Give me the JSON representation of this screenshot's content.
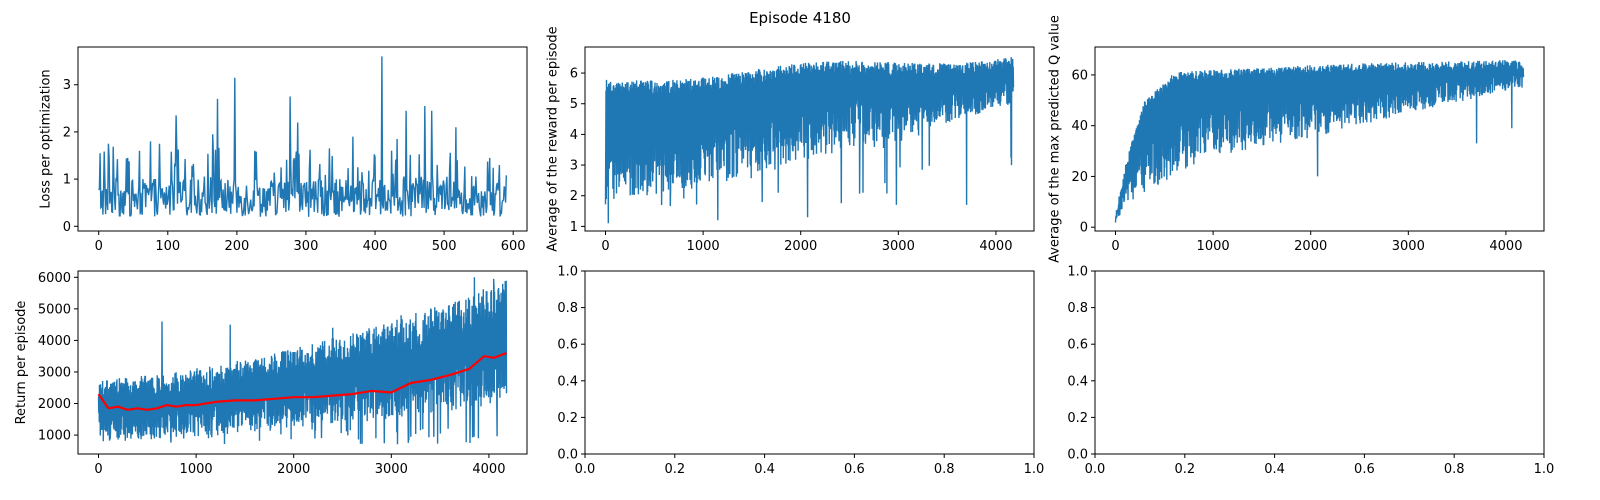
{
  "figure": {
    "suptitle": "Episode 4180"
  },
  "colors": {
    "series_blue": "#1f77b4",
    "running_mean_red": "#ff0000"
  },
  "chart_data": [
    {
      "id": "loss",
      "type": "line",
      "xlabel": "",
      "ylabel": "Loss per optimization",
      "xlim": [
        -30,
        620
      ],
      "ylim": [
        -0.1,
        3.8
      ],
      "xticks": [
        0,
        100,
        200,
        300,
        400,
        500,
        600
      ],
      "yticks": [
        0,
        1,
        2,
        3
      ],
      "grid": false,
      "x_range": [
        0,
        590
      ],
      "baseline_range": [
        0.2,
        1.0
      ],
      "spikes": [
        {
          "x": 2,
          "y": 1.55
        },
        {
          "x": 14,
          "y": 1.75
        },
        {
          "x": 42,
          "y": 1.45
        },
        {
          "x": 75,
          "y": 1.8
        },
        {
          "x": 88,
          "y": 1.75
        },
        {
          "x": 112,
          "y": 2.35
        },
        {
          "x": 165,
          "y": 1.95
        },
        {
          "x": 172,
          "y": 2.7
        },
        {
          "x": 197,
          "y": 3.15
        },
        {
          "x": 226,
          "y": 1.6
        },
        {
          "x": 277,
          "y": 2.75
        },
        {
          "x": 288,
          "y": 2.2
        },
        {
          "x": 334,
          "y": 1.65
        },
        {
          "x": 368,
          "y": 1.9
        },
        {
          "x": 410,
          "y": 3.6
        },
        {
          "x": 432,
          "y": 1.85
        },
        {
          "x": 445,
          "y": 2.45
        },
        {
          "x": 472,
          "y": 2.55
        },
        {
          "x": 482,
          "y": 2.45
        },
        {
          "x": 517,
          "y": 2.1
        },
        {
          "x": 566,
          "y": 1.45
        }
      ]
    },
    {
      "id": "avg-reward",
      "type": "line",
      "xlabel": "",
      "ylabel": "Average of the reward per episode",
      "xlim": [
        -210,
        4390
      ],
      "ylim": [
        0.85,
        6.85
      ],
      "xticks": [
        0,
        1000,
        2000,
        3000,
        4000
      ],
      "yticks": [
        1,
        2,
        3,
        4,
        5,
        6
      ],
      "grid": false,
      "x_range": [
        0,
        4180
      ],
      "band_start": [
        1.8,
        5.8
      ],
      "band_end": [
        5.0,
        6.6
      ],
      "min_dips": [
        {
          "x": 30,
          "y": 1.1
        },
        {
          "x": 1150,
          "y": 1.2
        },
        {
          "x": 2070,
          "y": 1.3
        },
        {
          "x": 2980,
          "y": 1.7
        },
        {
          "x": 3700,
          "y": 1.7
        },
        {
          "x": 4160,
          "y": 3.0
        }
      ]
    },
    {
      "id": "max-q",
      "type": "line",
      "xlabel": "",
      "ylabel": "Average of the max predicted Q value",
      "xlim": [
        -210,
        4390
      ],
      "ylim": [
        -1.5,
        71
      ],
      "xticks": [
        0,
        1000,
        2000,
        3000,
        4000
      ],
      "yticks": [
        0,
        20,
        40,
        60
      ],
      "grid": false,
      "x_range": [
        0,
        4180
      ],
      "upper_envelope": [
        {
          "x": 0,
          "y": 5
        },
        {
          "x": 100,
          "y": 25
        },
        {
          "x": 300,
          "y": 50
        },
        {
          "x": 600,
          "y": 61
        },
        {
          "x": 1000,
          "y": 62
        },
        {
          "x": 2000,
          "y": 64
        },
        {
          "x": 3000,
          "y": 65
        },
        {
          "x": 4180,
          "y": 66
        }
      ],
      "lower_envelope": [
        {
          "x": 0,
          "y": 2
        },
        {
          "x": 100,
          "y": 8
        },
        {
          "x": 300,
          "y": 14
        },
        {
          "x": 600,
          "y": 20
        },
        {
          "x": 1000,
          "y": 28
        },
        {
          "x": 2000,
          "y": 35
        },
        {
          "x": 3000,
          "y": 45
        },
        {
          "x": 4180,
          "y": 55
        }
      ],
      "min_dips": [
        {
          "x": 2070,
          "y": 20
        },
        {
          "x": 3700,
          "y": 33
        },
        {
          "x": 4060,
          "y": 39
        }
      ]
    },
    {
      "id": "return",
      "type": "line",
      "xlabel": "",
      "ylabel": "Return per episode",
      "xlim": [
        -210,
        4390
      ],
      "ylim": [
        400,
        6200
      ],
      "xticks": [
        0,
        1000,
        2000,
        3000,
        4000
      ],
      "yticks": [
        1000,
        2000,
        3000,
        4000,
        5000,
        6000
      ],
      "grid": false,
      "x_range": [
        0,
        4180
      ],
      "band_start": [
        1200,
        2800
      ],
      "band_end": [
        2400,
        5900
      ],
      "peaks": [
        {
          "x": 650,
          "y": 4600
        },
        {
          "x": 1350,
          "y": 4500
        },
        {
          "x": 2400,
          "y": 4400
        },
        {
          "x": 3100,
          "y": 4800
        },
        {
          "x": 3850,
          "y": 6000
        },
        {
          "x": 4050,
          "y": 5950
        }
      ],
      "series": [
        {
          "name": "running mean",
          "color": "#ff0000",
          "x": [
            0,
            100,
            200,
            300,
            400,
            500,
            600,
            700,
            800,
            900,
            1000,
            1200,
            1400,
            1600,
            1800,
            2000,
            2200,
            2400,
            2600,
            2800,
            3000,
            3200,
            3400,
            3600,
            3800,
            3950,
            4050,
            4180
          ],
          "y": [
            2300,
            1850,
            1900,
            1800,
            1850,
            1800,
            1850,
            1950,
            1900,
            1950,
            1950,
            2050,
            2100,
            2100,
            2150,
            2200,
            2200,
            2250,
            2300,
            2400,
            2350,
            2650,
            2750,
            2900,
            3100,
            3500,
            3450,
            3600
          ]
        }
      ]
    },
    {
      "id": "empty-1",
      "type": "line",
      "xlabel": "",
      "ylabel": "",
      "xlim": [
        0,
        1
      ],
      "ylim": [
        0,
        1
      ],
      "xticks": [
        0.0,
        0.2,
        0.4,
        0.6,
        0.8,
        1.0
      ],
      "yticks": [
        0.0,
        0.2,
        0.4,
        0.6,
        0.8,
        1.0
      ],
      "tick_format": "fixed1",
      "grid": false
    },
    {
      "id": "empty-2",
      "type": "line",
      "xlabel": "",
      "ylabel": "",
      "xlim": [
        0,
        1
      ],
      "ylim": [
        0,
        1
      ],
      "xticks": [
        0.0,
        0.2,
        0.4,
        0.6,
        0.8,
        1.0
      ],
      "yticks": [
        0.0,
        0.2,
        0.4,
        0.6,
        0.8,
        1.0
      ],
      "tick_format": "fixed1",
      "grid": false
    }
  ]
}
